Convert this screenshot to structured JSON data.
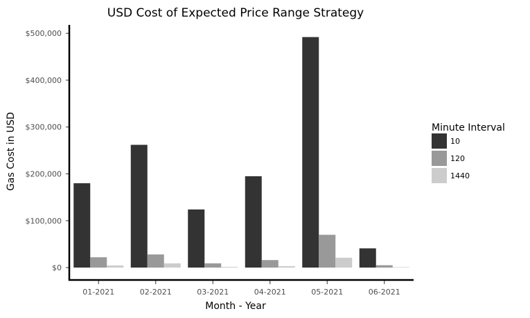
{
  "chart_data": {
    "type": "bar",
    "title": "USD Cost of Expected Price Range Strategy",
    "xlabel": "Month - Year",
    "ylabel": "Gas Cost in USD",
    "categories": [
      "01-2021",
      "02-2021",
      "03-2021",
      "04-2021",
      "05-2021",
      "06-2021"
    ],
    "series": [
      {
        "name": "10",
        "color": "#333333",
        "values": [
          180000,
          262000,
          124000,
          195000,
          492000,
          41000
        ]
      },
      {
        "name": "120",
        "color": "#999999",
        "values": [
          22000,
          28000,
          9000,
          16000,
          70000,
          5000
        ]
      },
      {
        "name": "1440",
        "color": "#cccccc",
        "values": [
          4500,
          9000,
          1500,
          3000,
          21000,
          1000
        ]
      }
    ],
    "ylim": [
      -25000,
      518000
    ],
    "yticks": [
      0,
      100000,
      200000,
      300000,
      400000,
      500000
    ],
    "ytick_labels": [
      "$0",
      "$100,000",
      "$200,000",
      "$300,000",
      "$400,000",
      "$500,000"
    ],
    "legend_title": "Minute Interval",
    "legend_position": "right",
    "grid": false
  }
}
